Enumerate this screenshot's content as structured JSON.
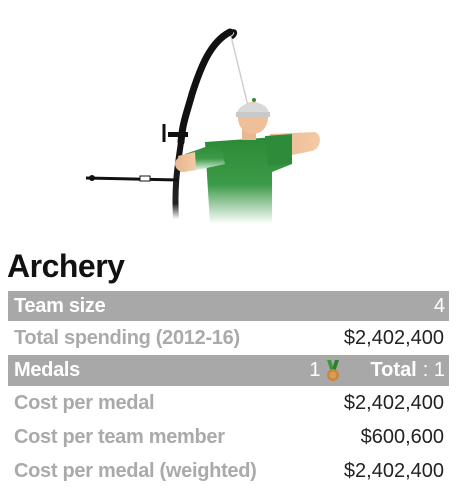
{
  "sport": {
    "title": "Archery",
    "illustration_icon": "archer-icon"
  },
  "stats": {
    "team_size": {
      "label": "Team size",
      "value": "4"
    },
    "total_spending": {
      "label": "Total spending (2012-16)",
      "value": "$2,402,400"
    },
    "medals": {
      "label": "Medals",
      "bronze_count": "1",
      "medal_icon": "bronze-medal-icon",
      "total_label": "Total",
      "total_value": ": 1"
    },
    "cost_per_medal": {
      "label": "Cost per medal",
      "value": "$2,402,400"
    },
    "cost_per_team_member": {
      "label": "Cost per team member",
      "value": "$600,600"
    },
    "cost_per_medal_weighted": {
      "label": "Cost per medal (weighted)",
      "value": "$2,402,400"
    }
  },
  "colors": {
    "band": "#a8a8a8",
    "muted_label": "#aaaaaa",
    "shirt_green": "#2e8b3a",
    "bronze": "#c8873a",
    "ribbon_green": "#3a9a3a"
  }
}
